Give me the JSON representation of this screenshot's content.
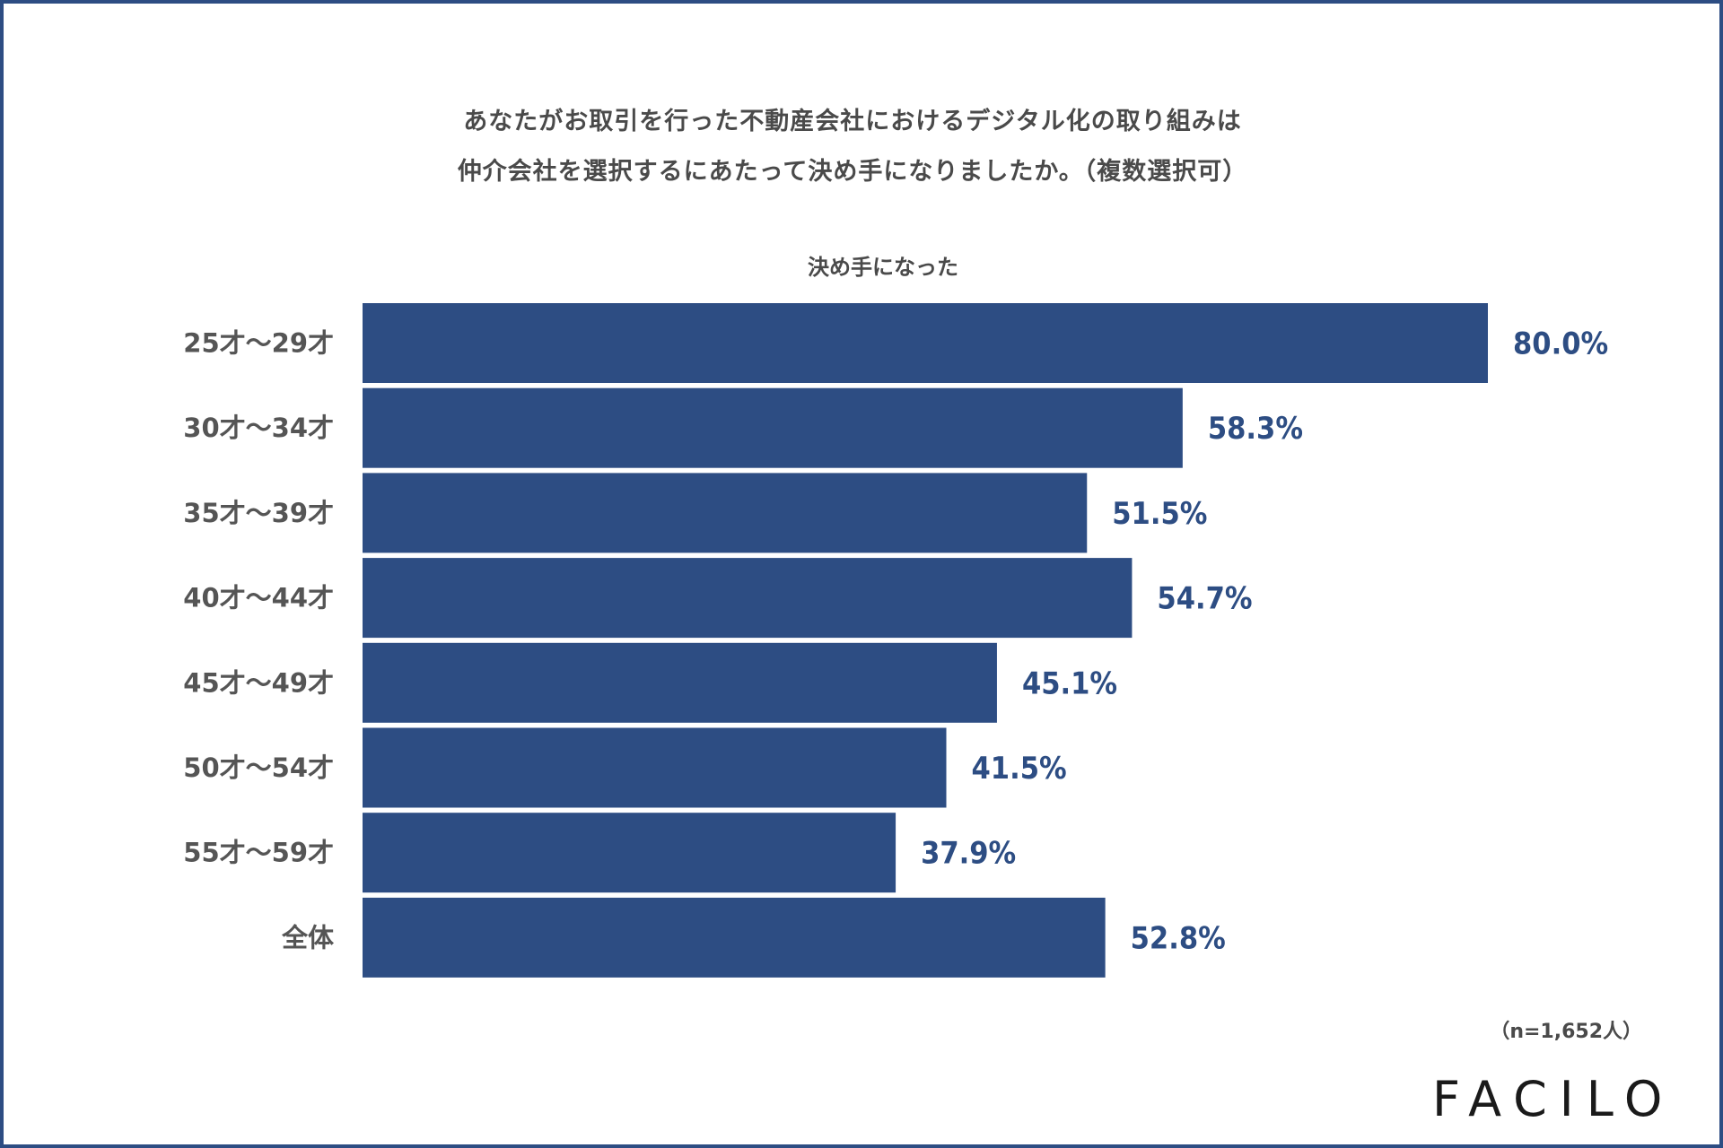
{
  "title_lines": [
    "あなたがお取引を行った不動産会社におけるデジタル化の取り組みは",
    "仲介会社を選択するにあたって決め手になりましたか。（複数選択可）"
  ],
  "note": "（n=1,652人）",
  "brand": "FACILO",
  "colors": {
    "bar": "#2d4d83",
    "value_text": "#2d4d83",
    "label_text": "#555555",
    "border": "#2d4d83"
  },
  "chart_data": {
    "type": "bar",
    "orientation": "horizontal",
    "title": "あなたがお取引を行った不動産会社におけるデジタル化の取り組みは 仲介会社を選択するにあたって決め手になりましたか。（複数選択可）",
    "categories": [
      "25才～29才",
      "30才～34才",
      "35才～39才",
      "40才～44才",
      "45才～49才",
      "50才～54才",
      "55才～59才",
      "全体"
    ],
    "series": [
      {
        "name": "決め手になった",
        "values": [
          80.0,
          58.3,
          51.5,
          54.7,
          45.1,
          41.5,
          37.9,
          52.8
        ],
        "labels": [
          "80.0%",
          "58.3%",
          "51.5%",
          "54.7%",
          "45.1%",
          "41.5%",
          "37.9%",
          "52.8%"
        ]
      }
    ],
    "xlim": [
      0,
      80
    ],
    "grid": false,
    "legend": "none"
  }
}
